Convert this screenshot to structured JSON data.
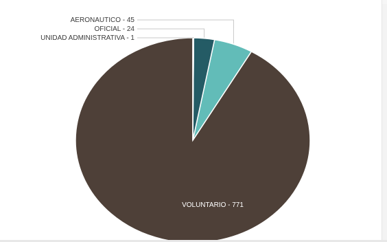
{
  "chart_data": {
    "type": "pie",
    "title": "",
    "start_angle_deg": 0,
    "direction": "counterclockwise",
    "slices": [
      {
        "category": "VOLUNTARIO",
        "value": 771,
        "label": "VOLUNTARIO - 771",
        "color": "#4e4038"
      },
      {
        "category": "AERONAUTICO",
        "value": 45,
        "label": "AERONAUTICO - 45",
        "color": "#62bcb8"
      },
      {
        "category": "OFICIAL",
        "value": 24,
        "label": "OFICIAL - 24",
        "color": "#245b65"
      },
      {
        "category": "UNIDAD ADMINISTRATIVA",
        "value": 1,
        "label": "UNIDAD ADMINISTRATIVA - 1",
        "color": "#9ad8d4"
      }
    ]
  }
}
